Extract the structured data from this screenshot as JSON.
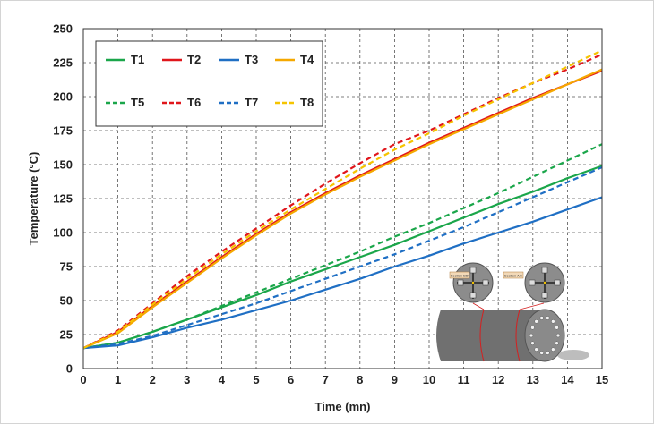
{
  "chart_data": {
    "type": "line",
    "xlabel": "Time (mn)",
    "ylabel": "Temperature (°C)",
    "xlim": [
      0,
      15
    ],
    "ylim": [
      0,
      250
    ],
    "xticks": [
      0,
      1,
      2,
      3,
      4,
      5,
      6,
      7,
      8,
      9,
      10,
      11,
      12,
      13,
      14,
      15
    ],
    "yticks": [
      0,
      25,
      50,
      75,
      100,
      125,
      150,
      175,
      200,
      225,
      250
    ],
    "grid": true,
    "legend_position": "top-left",
    "x": [
      0,
      1,
      2,
      3,
      4,
      5,
      6,
      7,
      8,
      9,
      10,
      11,
      12,
      13,
      14,
      15
    ],
    "series": [
      {
        "name": "T1",
        "color": "#1aa64a",
        "style": "solid",
        "values": [
          15,
          19,
          27,
          36,
          45,
          54,
          64,
          73,
          82,
          91,
          101,
          111,
          121,
          130,
          140,
          149
        ]
      },
      {
        "name": "T2",
        "color": "#e0161b",
        "style": "solid",
        "values": [
          15,
          27,
          46,
          64,
          82,
          99,
          115,
          129,
          142,
          154,
          166,
          177,
          188,
          199,
          209,
          219
        ]
      },
      {
        "name": "T3",
        "color": "#1f6fc4",
        "style": "solid",
        "values": [
          15,
          17,
          23,
          30,
          36,
          43,
          50,
          58,
          66,
          75,
          83,
          92,
          100,
          108,
          117,
          126
        ]
      },
      {
        "name": "T4",
        "color": "#f5a800",
        "style": "solid",
        "values": [
          15,
          26,
          45,
          63,
          81,
          98,
          114,
          128,
          141,
          153,
          165,
          176,
          187,
          198,
          209,
          220
        ]
      },
      {
        "name": "T5",
        "color": "#1aa64a",
        "style": "dashed",
        "values": [
          15,
          19,
          27,
          36,
          46,
          56,
          66,
          76,
          86,
          97,
          107,
          118,
          129,
          141,
          153,
          165
        ]
      },
      {
        "name": "T6",
        "color": "#e0161b",
        "style": "dashed",
        "values": [
          15,
          28,
          48,
          68,
          86,
          103,
          120,
          136,
          151,
          165,
          175,
          187,
          199,
          210,
          220,
          231
        ]
      },
      {
        "name": "T7",
        "color": "#1f6fc4",
        "style": "dashed",
        "values": [
          15,
          18,
          24,
          32,
          40,
          48,
          57,
          66,
          75,
          84,
          94,
          104,
          115,
          126,
          137,
          148
        ]
      },
      {
        "name": "T8",
        "color": "#f5c400",
        "style": "dashed",
        "values": [
          15,
          27,
          47,
          66,
          84,
          101,
          117,
          132,
          147,
          161,
          173,
          186,
          198,
          210,
          222,
          234
        ]
      }
    ]
  },
  "inset": {
    "section_label_1": "Section BB'",
    "section_label_2": "Section AA'"
  }
}
